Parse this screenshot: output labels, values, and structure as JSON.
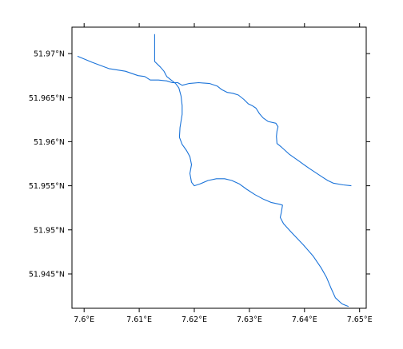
{
  "chart_data": {
    "type": "line",
    "title": "",
    "xlabel": "",
    "ylabel": "",
    "xlim": [
      7.5978,
      7.6512
    ],
    "ylim": [
      51.9411,
      51.973
    ],
    "grid": false,
    "x_ticks": [
      {
        "value": 7.6,
        "label": "7.6°E"
      },
      {
        "value": 7.61,
        "label": "7.61°E"
      },
      {
        "value": 7.62,
        "label": "7.62°E"
      },
      {
        "value": 7.63,
        "label": "7.63°E"
      },
      {
        "value": 7.64,
        "label": "7.64°E"
      },
      {
        "value": 7.65,
        "label": "7.65°E"
      }
    ],
    "y_ticks": [
      {
        "value": 51.97,
        "label": "51.97°N"
      },
      {
        "value": 51.965,
        "label": "51.965°N"
      },
      {
        "value": 51.96,
        "label": "51.96°N"
      },
      {
        "value": 51.955,
        "label": "51.955°N"
      },
      {
        "value": 51.95,
        "label": "51.95°N"
      },
      {
        "value": 51.945,
        "label": "51.945°N"
      }
    ],
    "line_color": "#1a73d9",
    "series": [
      {
        "values": [
          [
            7.5988,
            51.9697
          ],
          [
            7.6015,
            51.969
          ],
          [
            7.6045,
            51.9683
          ],
          [
            7.6075,
            51.968
          ],
          [
            7.6098,
            51.9675
          ],
          [
            7.611,
            51.9674
          ],
          [
            7.612,
            51.967
          ],
          [
            7.6135,
            51.967
          ],
          [
            7.615,
            51.9669
          ],
          [
            7.616,
            51.9667
          ],
          [
            7.617,
            51.9667
          ],
          [
            7.6178,
            51.9664
          ],
          [
            7.619,
            51.9666
          ],
          [
            7.6208,
            51.9667
          ],
          [
            7.6228,
            51.9666
          ],
          [
            7.6242,
            51.9663
          ],
          [
            7.625,
            51.9659
          ],
          [
            7.626,
            51.9656
          ],
          [
            7.627,
            51.9655
          ],
          [
            7.628,
            51.9653
          ],
          [
            7.629,
            51.9648
          ],
          [
            7.6298,
            51.9643
          ],
          [
            7.6305,
            51.9641
          ],
          [
            7.6312,
            51.9638
          ],
          [
            7.6318,
            51.9632
          ],
          [
            7.6325,
            51.9627
          ],
          [
            7.6334,
            51.9623
          ],
          [
            7.6348,
            51.9621
          ],
          [
            7.6352,
            51.9617
          ],
          [
            7.635,
            51.9612
          ],
          [
            7.6349,
            51.9606
          ],
          [
            7.635,
            51.9598
          ],
          [
            7.6358,
            51.9594
          ],
          [
            7.6372,
            51.9586
          ],
          [
            7.639,
            51.9578
          ],
          [
            7.6408,
            51.957
          ],
          [
            7.642,
            51.9565
          ],
          [
            7.6432,
            51.956
          ],
          [
            7.6442,
            51.9556
          ],
          [
            7.6452,
            51.9553
          ],
          [
            7.647,
            51.9551
          ],
          [
            7.6485,
            51.955
          ]
        ]
      },
      {
        "values": [
          [
            7.6128,
            51.9722
          ],
          [
            7.6128,
            51.9705
          ],
          [
            7.6128,
            51.9691
          ],
          [
            7.6138,
            51.9685
          ],
          [
            7.6145,
            51.968
          ],
          [
            7.615,
            51.9674
          ],
          [
            7.6158,
            51.967
          ],
          [
            7.6166,
            51.9666
          ],
          [
            7.6172,
            51.9661
          ],
          [
            7.6176,
            51.9652
          ],
          [
            7.6178,
            51.9641
          ],
          [
            7.6178,
            51.9631
          ],
          [
            7.6174,
            51.9616
          ],
          [
            7.6173,
            51.9605
          ],
          [
            7.6178,
            51.9597
          ],
          [
            7.6186,
            51.959
          ],
          [
            7.6192,
            51.9583
          ],
          [
            7.6195,
            51.9574
          ],
          [
            7.6192,
            51.9564
          ],
          [
            7.6195,
            51.9554
          ],
          [
            7.62,
            51.955
          ],
          [
            7.621,
            51.9552
          ],
          [
            7.6225,
            51.9556
          ],
          [
            7.624,
            51.9558
          ],
          [
            7.6255,
            51.9558
          ],
          [
            7.6268,
            51.9556
          ],
          [
            7.6282,
            51.9552
          ],
          [
            7.6295,
            51.9546
          ],
          [
            7.631,
            51.954
          ],
          [
            7.6325,
            51.9535
          ],
          [
            7.634,
            51.9531
          ],
          [
            7.6355,
            51.9529
          ],
          [
            7.636,
            51.9528
          ],
          [
            7.6358,
            51.952
          ],
          [
            7.6356,
            51.9514
          ],
          [
            7.6362,
            51.9507
          ],
          [
            7.6378,
            51.9496
          ],
          [
            7.6398,
            51.9483
          ],
          [
            7.6416,
            51.947
          ],
          [
            7.643,
            51.9457
          ],
          [
            7.644,
            51.9446
          ],
          [
            7.6448,
            51.9434
          ],
          [
            7.6456,
            51.9423
          ],
          [
            7.6468,
            51.9416
          ],
          [
            7.648,
            51.9413
          ]
        ]
      }
    ]
  }
}
